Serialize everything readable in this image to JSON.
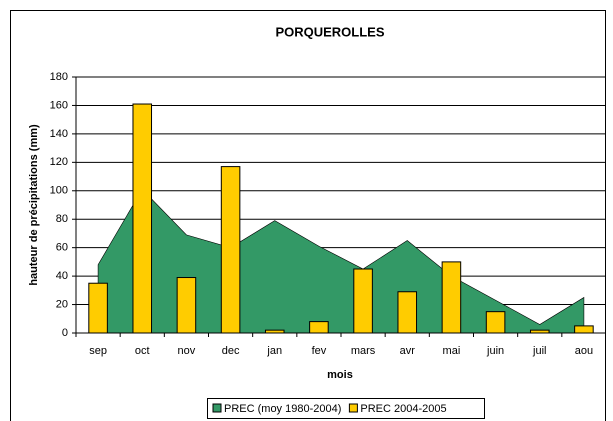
{
  "chart_data": {
    "type": "bar-area",
    "title": "PORQUEROLLES",
    "x_label": "mois",
    "y_label": "hauteur de précipitations (mm)",
    "categories": [
      "sep",
      "oct",
      "nov",
      "dec",
      "jan",
      "fev",
      "mars",
      "avr",
      "mai",
      "juin",
      "juil",
      "aou"
    ],
    "series": [
      {
        "name": "PREC (moy 1980-2004)",
        "kind": "area",
        "color": "#339966",
        "values": [
          48,
          101,
          69,
          60,
          79,
          61,
          45,
          65,
          40,
          23,
          6,
          25
        ]
      },
      {
        "name": "PREC 2004-2005",
        "kind": "bar",
        "color": "#ffcc00",
        "values": [
          35,
          161,
          39,
          117,
          2,
          8,
          45,
          29,
          50,
          15,
          2,
          5
        ]
      }
    ],
    "ylim": [
      0,
      180
    ],
    "yticks": [
      0,
      20,
      40,
      60,
      80,
      100,
      120,
      140,
      160,
      180
    ],
    "grid": true,
    "legend": "bottom"
  }
}
